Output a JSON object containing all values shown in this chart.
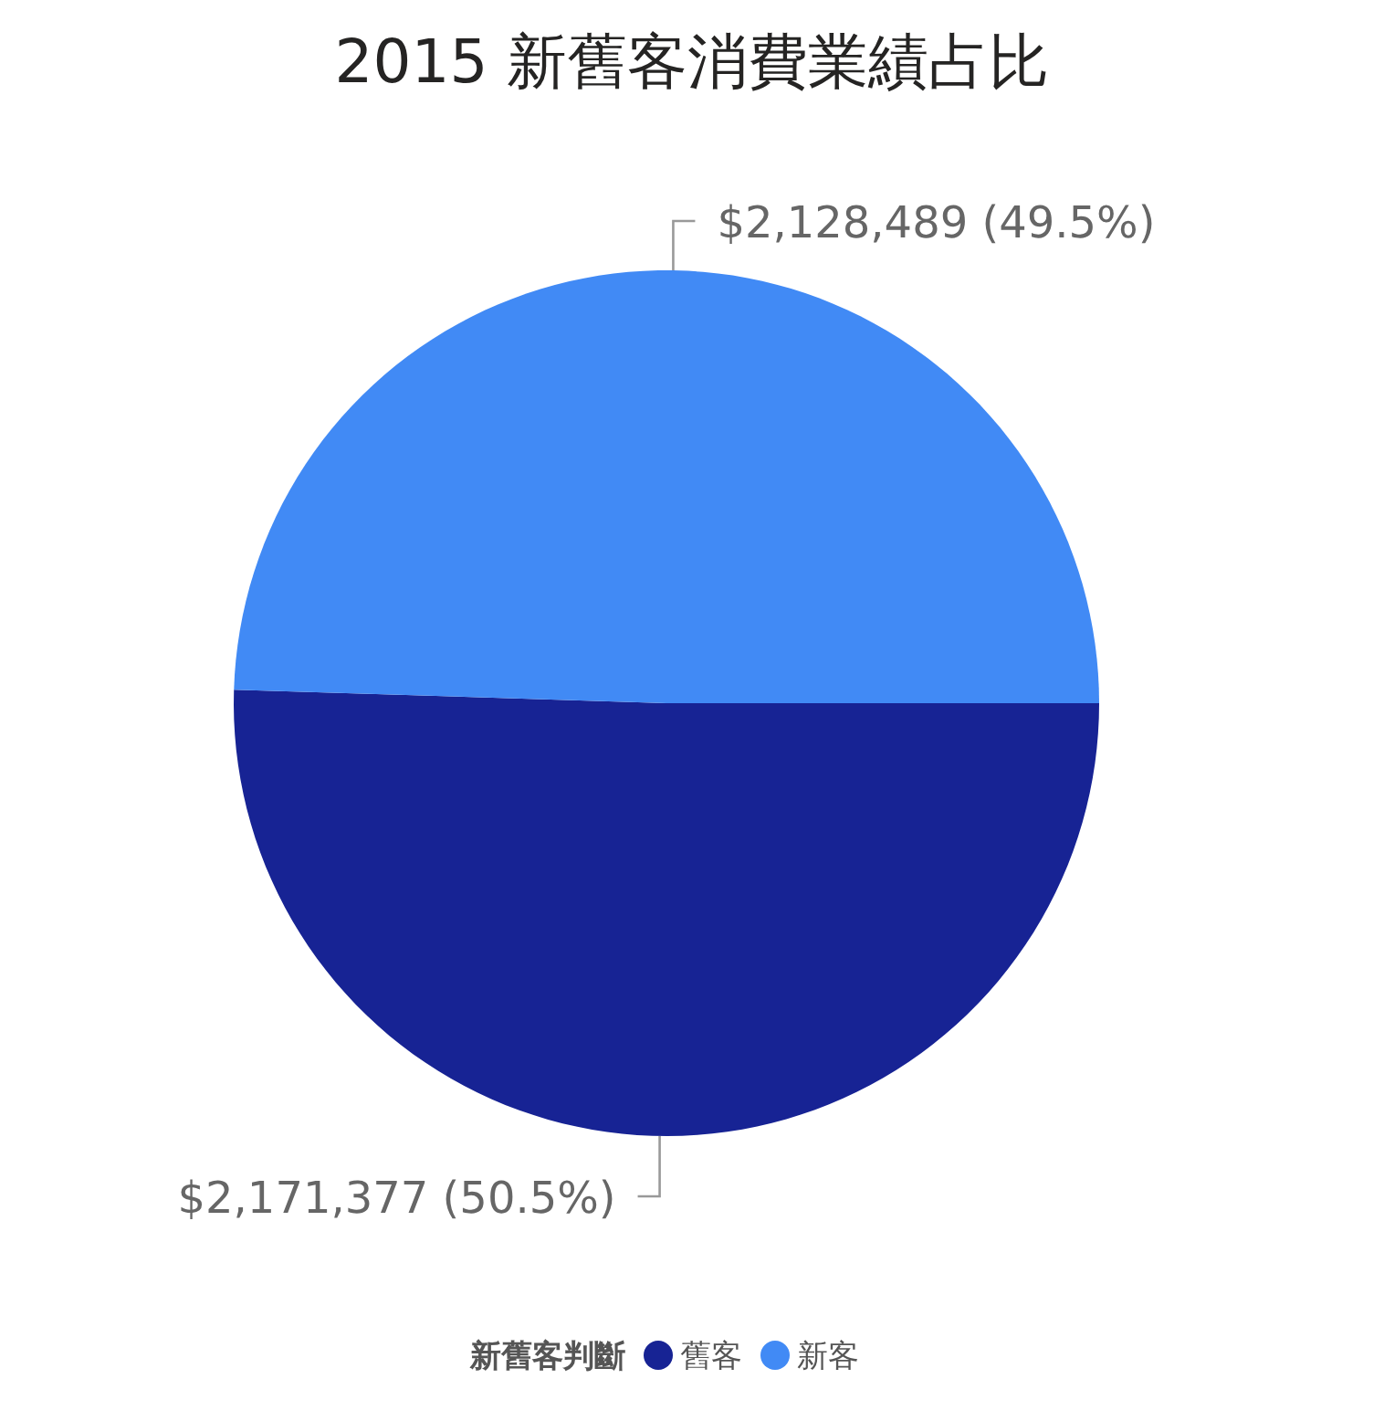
{
  "chart_data": {
    "type": "pie",
    "title": "2015 新舊客消費業績占比",
    "categories": [
      "舊客",
      "新客"
    ],
    "values": [
      2171377,
      2128489
    ],
    "colors": [
      "#172394",
      "#418af5"
    ],
    "value_labels": [
      "$2,171,377 (50.5%)",
      "$2,128,489 (49.5%)"
    ],
    "legend": "bottom",
    "legend_title": "新舊客判斷"
  }
}
